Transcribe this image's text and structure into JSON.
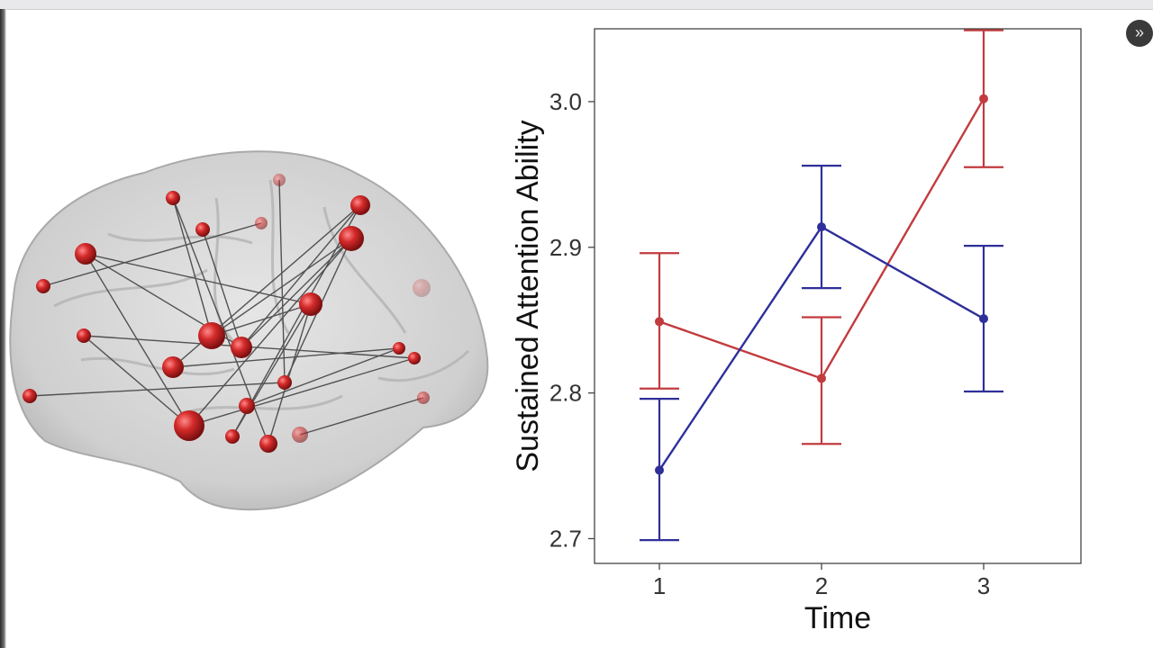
{
  "colors": {
    "red_series": "#c23b3f",
    "blue_series": "#2f2f9a",
    "node": "#d42a2a",
    "brain_fill": "#c9c9c9"
  },
  "icons": {
    "side_toggle": "chevron-right-icon"
  },
  "chart_data": {
    "type": "line",
    "title": "",
    "xlabel": "Time",
    "ylabel": "Sustained Attention Ability",
    "x": [
      1,
      2,
      3
    ],
    "xticks": [
      "1",
      "2",
      "3"
    ],
    "yticks": [
      "2.7",
      "2.8",
      "2.9",
      "3.0"
    ],
    "xlim": [
      0.6,
      3.6
    ],
    "ylim": [
      2.683,
      3.05
    ],
    "grid": false,
    "legend": "none",
    "error_bars": true,
    "series": [
      {
        "color": "#c23b3f",
        "values": [
          2.849,
          2.81,
          3.002
        ],
        "err_low": [
          2.803,
          2.765,
          2.955
        ],
        "err_high": [
          2.896,
          2.852,
          3.049
        ]
      },
      {
        "color": "#2f2f9a",
        "values": [
          2.747,
          2.914,
          2.851
        ],
        "err_low": [
          2.699,
          2.872,
          2.801
        ],
        "err_high": [
          2.796,
          2.956,
          2.901
        ]
      }
    ]
  }
}
